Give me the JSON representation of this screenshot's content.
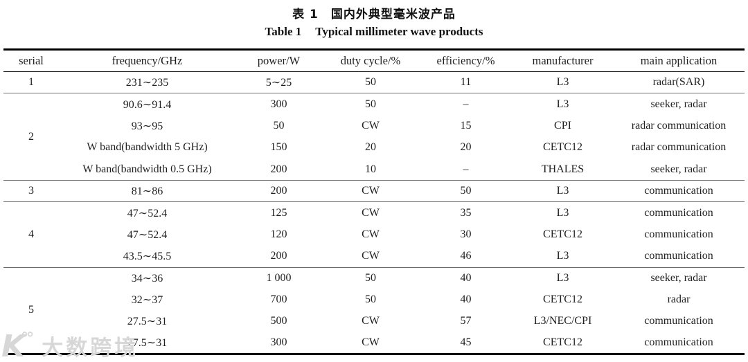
{
  "title": {
    "cn_label": "表 1",
    "cn_text": "国内外典型毫米波产品",
    "en_label": "Table 1",
    "en_text": "Typical millimeter wave products"
  },
  "table": {
    "columns": [
      "serial",
      "frequency/GHz",
      "power/W",
      "duty cycle/%",
      "efficiency/%",
      "manufacturer",
      "main application"
    ],
    "groups": [
      {
        "serial": "1",
        "rows": [
          [
            "231∼235",
            "5∼25",
            "50",
            "11",
            "L3",
            "radar(SAR)"
          ]
        ]
      },
      {
        "serial": "2",
        "rows": [
          [
            "90.6∼91.4",
            "300",
            "50",
            "–",
            "L3",
            "seeker, radar"
          ],
          [
            "93∼95",
            "50",
            "CW",
            "15",
            "CPI",
            "radar communication"
          ],
          [
            "W band(bandwidth 5 GHz)",
            "150",
            "20",
            "20",
            "CETC12",
            "radar communication"
          ],
          [
            "W band(bandwidth 0.5 GHz)",
            "200",
            "10",
            "–",
            "THALES",
            "seeker, radar"
          ]
        ]
      },
      {
        "serial": "3",
        "rows": [
          [
            "81∼86",
            "200",
            "CW",
            "50",
            "L3",
            "communication"
          ]
        ]
      },
      {
        "serial": "4",
        "rows": [
          [
            "47∼52.4",
            "125",
            "CW",
            "35",
            "L3",
            "communication"
          ],
          [
            "47∼52.4",
            "120",
            "CW",
            "30",
            "CETC12",
            "communication"
          ],
          [
            "43.5∼45.5",
            "200",
            "CW",
            "46",
            "L3",
            "communication"
          ]
        ]
      },
      {
        "serial": "5",
        "rows": [
          [
            "34∼36",
            "1 000",
            "50",
            "40",
            "L3",
            "seeker, radar"
          ],
          [
            "32∼37",
            "700",
            "50",
            "40",
            "CETC12",
            "radar"
          ],
          [
            "27.5∼31",
            "500",
            "CW",
            "57",
            "L3/NEC/CPI",
            "communication"
          ],
          [
            "27.5∼31",
            "300",
            "CW",
            "45",
            "CETC12",
            "communication"
          ]
        ]
      }
    ]
  },
  "watermark": {
    "logo": "K",
    "logo_sup": "°°",
    "text": "大数跨境"
  },
  "colors": {
    "text": "#1f1f1f",
    "rule_heavy": "#000000",
    "rule_light": "#6b6b6b",
    "watermark": "#d7d7d7"
  }
}
